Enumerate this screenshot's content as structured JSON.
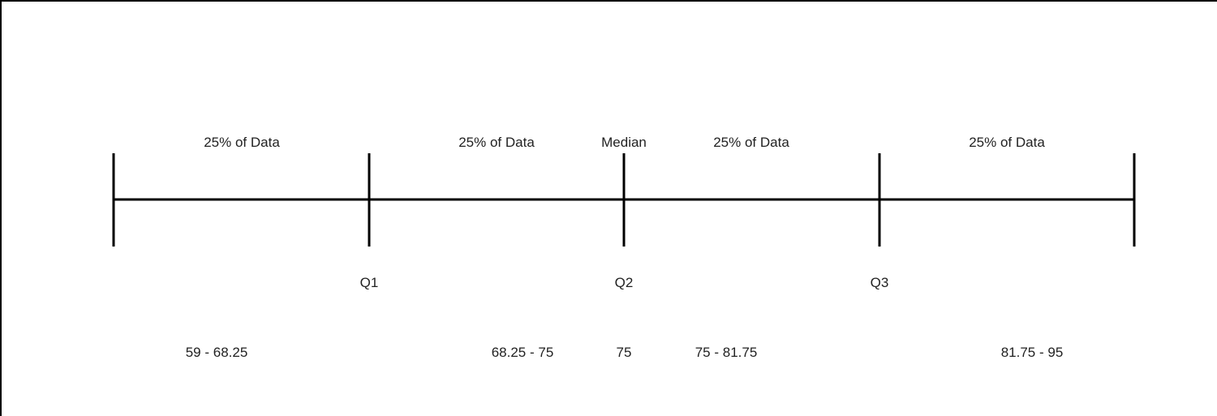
{
  "segments": [
    {
      "label": "25% of Data",
      "range": "59 - 68.25"
    },
    {
      "label": "25% of Data",
      "range": "68.25 - 75"
    },
    {
      "label": "25% of Data",
      "range": "75 - 81.75"
    },
    {
      "label": "25% of Data",
      "range": "81.75 - 95"
    }
  ],
  "median": {
    "label": "Median",
    "value": "75"
  },
  "quartiles": [
    "Q1",
    "Q2",
    "Q3"
  ],
  "colors": {
    "line": "#000000",
    "text": "#222222"
  }
}
